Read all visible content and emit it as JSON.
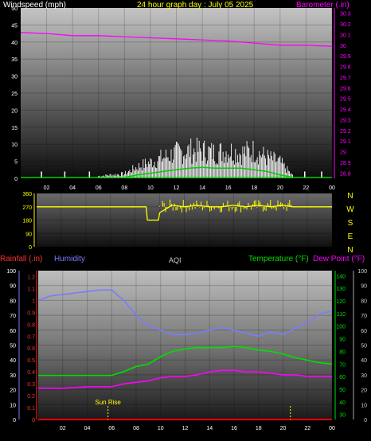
{
  "header": {
    "wind_label": "Windspeed (mph)",
    "title": "24 hour graph day : July 05 2025",
    "baro_label": "Barometer (.in)"
  },
  "compass": [
    "N",
    "W",
    "S",
    "E",
    "N"
  ],
  "bottom_labels": {
    "rain": "Rainfall (.in)",
    "humidity": "Humidity",
    "aqi": "AQI",
    "temperature": "Temperature (°F)",
    "dewpoint": "Dew Point (°F)",
    "sunrise": "Sun Rise"
  },
  "colors": {
    "wind": "#ffffff",
    "gust": "#ffffff",
    "wind_avg": "#00d000",
    "barometer": "#ff00ff",
    "direction": "#ffff00",
    "humidity": "#7b7bff",
    "temperature": "#00e000",
    "dewpoint": "#ff00ff",
    "rain": "#ff0000",
    "wind_label": "#ffffff",
    "title": "#ffff00",
    "baro_label": "#ff00ff"
  },
  "chart_data": [
    {
      "type": "line",
      "name": "wind-barometer",
      "x_ticks": [
        "02",
        "04",
        "06",
        "08",
        "10",
        "12",
        "14",
        "16",
        "18",
        "20",
        "22",
        "00"
      ],
      "left_axis": {
        "ticks": [
          "50",
          "45",
          "40",
          "35",
          "30",
          "25",
          "20",
          "15",
          "10",
          "5",
          "0"
        ],
        "ylim": [
          0,
          50
        ]
      },
      "right_axis": {
        "ticks": [
          "30.3",
          "30.2",
          "30.1",
          "30",
          "29.9",
          "29.8",
          "29.7",
          "29.6",
          "29.5",
          "29.4",
          "29.3",
          "29.2",
          "29.1",
          "29",
          "28.9",
          "28.8"
        ],
        "ylim": [
          28.75,
          30.35
        ]
      },
      "barometer": {
        "x": [
          0,
          2,
          4,
          6,
          8,
          10,
          12,
          14,
          16,
          18,
          20,
          22,
          24
        ],
        "y": [
          30.12,
          30.11,
          30.09,
          30.09,
          30.08,
          30.07,
          30.06,
          30.05,
          30.04,
          30.02,
          30.0,
          30.0,
          29.99
        ]
      },
      "wind_gust_max": {
        "x": [
          6,
          8,
          9,
          10,
          11,
          12,
          13,
          14,
          15,
          16,
          17,
          18,
          19,
          20,
          20.5,
          21
        ],
        "y": [
          1,
          2,
          5,
          7,
          9,
          11,
          12,
          12,
          11,
          12,
          11,
          12,
          9,
          7,
          4,
          1
        ]
      },
      "wind_avg": {
        "x": [
          8,
          9,
          10,
          11,
          12,
          13,
          14,
          15,
          16,
          17,
          18,
          19,
          20,
          21
        ],
        "y": [
          0.3,
          1,
          1.5,
          2,
          2.5,
          3,
          3.2,
          3,
          3,
          3,
          2.5,
          2,
          1,
          0.3
        ]
      }
    },
    {
      "type": "line",
      "name": "wind-direction",
      "x_ticks": [
        "02",
        "04",
        "06",
        "08",
        "10",
        "12",
        "14",
        "16",
        "18",
        "20",
        "22",
        "00"
      ],
      "left_axis": {
        "ticks": [
          "360",
          "270",
          "180",
          "90",
          "0"
        ],
        "ylim": [
          0,
          360
        ]
      },
      "direction": {
        "x": [
          0,
          2,
          4,
          6,
          8,
          8.9,
          9,
          9.9,
          10,
          11,
          12,
          13,
          14,
          15,
          16,
          17,
          18,
          19,
          20,
          20.8,
          21,
          22,
          24
        ],
        "y": [
          270,
          270,
          270,
          270,
          270,
          270,
          180,
          180,
          230,
          280,
          270,
          280,
          270,
          270,
          280,
          270,
          280,
          270,
          280,
          270,
          270,
          270,
          270
        ]
      }
    },
    {
      "type": "line",
      "name": "weather",
      "x_ticks": [
        "02",
        "04",
        "06",
        "08",
        "10",
        "12",
        "14",
        "16",
        "18",
        "20",
        "22",
        "00"
      ],
      "rain_axis": {
        "ticks": [
          "1.2",
          "1.1",
          "1",
          "0.9",
          "0.8",
          "0.7",
          "0.6",
          "0.5",
          "0.4",
          "0.3",
          "0.2",
          "0.1",
          "0"
        ],
        "ylim": [
          0,
          1.25
        ]
      },
      "humidity_axis": {
        "ticks": [
          "100",
          "90",
          "80",
          "70",
          "60",
          "50",
          "40",
          "30",
          "20",
          "10",
          "0"
        ],
        "ylim": [
          0,
          100
        ]
      },
      "temp_axis": {
        "ticks": [
          "140",
          "130",
          "120",
          "110",
          "100",
          "90",
          "80",
          "70",
          "60",
          "50",
          "40",
          "30"
        ],
        "ylim": [
          26,
          144
        ]
      },
      "dew_axis": {
        "ticks": [
          "100",
          "90",
          "80",
          "70",
          "60",
          "50",
          "40",
          "30",
          "20",
          "10",
          "0"
        ],
        "ylim": [
          0,
          100
        ]
      },
      "humidity": {
        "x": [
          0,
          1,
          2,
          3,
          4,
          5,
          6,
          7,
          8,
          9,
          10,
          11,
          12,
          13,
          14,
          15,
          16,
          17,
          18,
          19,
          20,
          21,
          22,
          23,
          24
        ],
        "y": [
          80,
          83,
          84,
          85,
          86,
          87,
          87,
          80,
          70,
          63,
          60,
          57,
          57,
          58,
          60,
          62,
          60,
          58,
          56,
          59,
          57,
          61,
          65,
          71,
          73
        ]
      },
      "temperature": {
        "x": [
          0,
          2,
          4,
          6,
          7,
          8,
          9,
          10,
          11,
          12,
          13,
          14,
          15,
          16,
          17,
          18,
          19,
          20,
          21,
          22,
          23,
          24
        ],
        "y": [
          61,
          61,
          61,
          61,
          64,
          68,
          70,
          76,
          80,
          82,
          83,
          83,
          83,
          84,
          83,
          81,
          80,
          78,
          75,
          73,
          71,
          70
        ]
      },
      "dewpoint": {
        "x": [
          0,
          2,
          4,
          6,
          7,
          8,
          9,
          10,
          11,
          12,
          13,
          14,
          15,
          16,
          17,
          18,
          19,
          20,
          21,
          22,
          23,
          24
        ],
        "y": [
          21,
          21,
          22,
          22,
          24,
          25,
          26,
          28,
          29,
          29,
          30,
          32,
          33,
          33,
          32,
          32,
          31,
          30,
          30,
          29,
          29,
          29
        ]
      },
      "rain": {
        "x": [
          0,
          24
        ],
        "y": [
          0,
          0
        ]
      },
      "sunrise_hour": 5.7,
      "sunset_hour": 20.6
    }
  ]
}
